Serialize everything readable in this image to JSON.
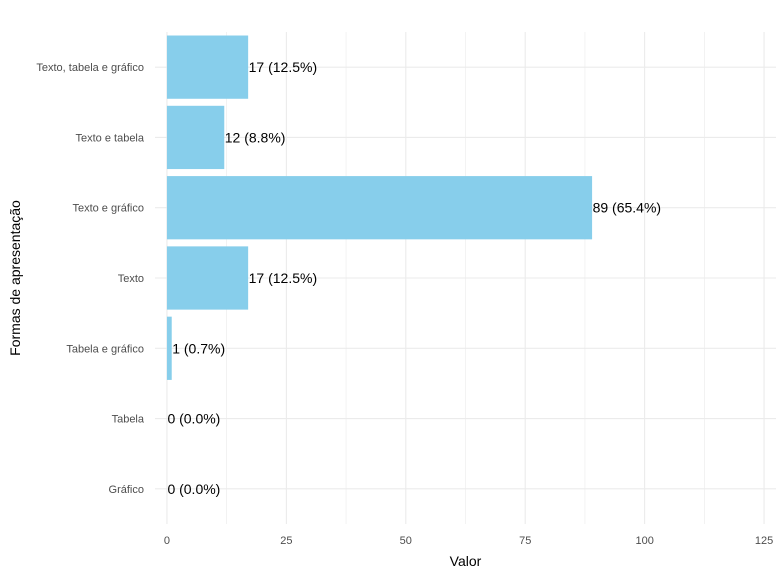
{
  "chart_data": {
    "type": "bar",
    "orientation": "horizontal",
    "categories": [
      "Texto, tabela e gráfico",
      "Texto e tabela",
      "Texto e gráfico",
      "Texto",
      "Tabela e gráfico",
      "Tabela",
      "Gráfico"
    ],
    "values": [
      17,
      12,
      89,
      17,
      1,
      0,
      0
    ],
    "labels": [
      "17 (12.5%)",
      "12 (8.8%)",
      "89 (65.4%)",
      "17 (12.5%)",
      "1 (0.7%)",
      "0 (0.0%)",
      "0 (0.0%)"
    ],
    "xlabel": "Valor",
    "ylabel": "Formas de apresentação",
    "xlim": [
      -2.5,
      127.5
    ],
    "x_ticks": [
      0,
      25,
      50,
      75,
      100,
      125
    ],
    "x_tick_labels": [
      "0",
      "25",
      "50",
      "75",
      "100",
      "125"
    ],
    "grid": true,
    "bar_color": "#87CEEB",
    "grid_color": "#ebebeb"
  }
}
